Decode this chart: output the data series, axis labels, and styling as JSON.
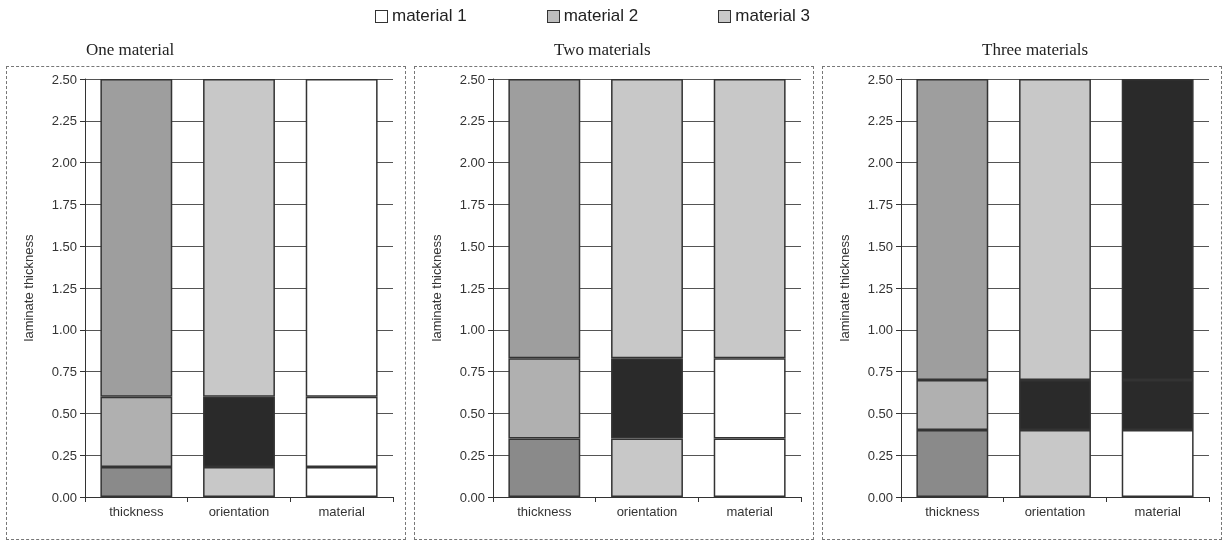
{
  "chart_data": [
    {
      "type": "bar",
      "title": "One material",
      "ylabel": "laminate thickness",
      "stacked": true,
      "categories": [
        "thickness",
        "orientation",
        "material"
      ],
      "ylim": [
        0,
        2.5
      ],
      "yticks": [
        {
          "value": 0,
          "label": "0.00"
        },
        {
          "value": 0.25,
          "label": "0.25"
        },
        {
          "value": 0.5,
          "label": "0.50"
        },
        {
          "value": 0.75,
          "label": "0.75"
        },
        {
          "value": 1,
          "label": "1.00"
        },
        {
          "value": 1.25,
          "label": "1.25"
        },
        {
          "value": 1.5,
          "label": "1.50"
        },
        {
          "value": 1.75,
          "label": "1.75"
        },
        {
          "value": 2,
          "label": "2.00"
        },
        {
          "value": 2.25,
          "label": "2.25"
        },
        {
          "value": 2.5,
          "label": "2.50"
        }
      ],
      "grid": "y",
      "annotations": [
        "material 1",
        "material 2",
        "material 3"
      ],
      "series": [
        {
          "values": [
            0.18,
            0.18,
            0.18
          ],
          "colors": [
            "#8a8a8a",
            "#c8c8c8",
            "#ffffff"
          ]
        },
        {
          "values": [
            0.42,
            0.42,
            0.42
          ],
          "colors": [
            "#b0b0b0",
            "#2a2a2a",
            "#ffffff"
          ]
        },
        {
          "values": [
            1.9,
            1.9,
            1.9
          ],
          "colors": [
            "#9e9e9e",
            "#c8c8c8",
            "#ffffff"
          ]
        }
      ]
    },
    {
      "type": "bar",
      "title": "Two materials",
      "ylabel": "laminate thickness",
      "stacked": true,
      "categories": [
        "thickness",
        "orientation",
        "material"
      ],
      "ylim": [
        0,
        2.5
      ],
      "yticks": [
        {
          "value": 0,
          "label": "0.00"
        },
        {
          "value": 0.25,
          "label": "0.25"
        },
        {
          "value": 0.5,
          "label": "0.50"
        },
        {
          "value": 0.75,
          "label": "0.75"
        },
        {
          "value": 1,
          "label": "1.00"
        },
        {
          "value": 1.25,
          "label": "1.25"
        },
        {
          "value": 1.5,
          "label": "1.50"
        },
        {
          "value": 1.75,
          "label": "1.75"
        },
        {
          "value": 2,
          "label": "2.00"
        },
        {
          "value": 2.25,
          "label": "2.25"
        },
        {
          "value": 2.5,
          "label": "2.50"
        }
      ],
      "grid": "y",
      "series": [
        {
          "values": [
            0.35,
            0.35,
            0.35
          ],
          "colors": [
            "#8a8a8a",
            "#c8c8c8",
            "#ffffff"
          ]
        },
        {
          "values": [
            0.48,
            0.48,
            0.48
          ],
          "colors": [
            "#b0b0b0",
            "#2a2a2a",
            "#ffffff"
          ]
        },
        {
          "values": [
            1.67,
            1.67,
            1.67
          ],
          "colors": [
            "#9e9e9e",
            "#c8c8c8",
            "#c8c8c8"
          ]
        }
      ]
    },
    {
      "type": "bar",
      "title": "Three materials",
      "ylabel": "laminate thickness",
      "stacked": true,
      "categories": [
        "thickness",
        "orientation",
        "material"
      ],
      "ylim": [
        0,
        2.5
      ],
      "yticks": [
        {
          "value": 0,
          "label": "0.00"
        },
        {
          "value": 0.25,
          "label": "0.25"
        },
        {
          "value": 0.5,
          "label": "0.50"
        },
        {
          "value": 0.75,
          "label": "0.75"
        },
        {
          "value": 1,
          "label": "1.00"
        },
        {
          "value": 1.25,
          "label": "1.25"
        },
        {
          "value": 1.5,
          "label": "1.50"
        },
        {
          "value": 1.75,
          "label": "1.75"
        },
        {
          "value": 2,
          "label": "2.00"
        },
        {
          "value": 2.25,
          "label": "2.25"
        },
        {
          "value": 2.5,
          "label": "2.50"
        }
      ],
      "grid": "y",
      "series": [
        {
          "values": [
            0.4,
            0.4,
            0.4
          ],
          "colors": [
            "#8a8a8a",
            "#c8c8c8",
            "#ffffff"
          ]
        },
        {
          "values": [
            0.3,
            0.3,
            0.3
          ],
          "colors": [
            "#b0b0b0",
            "#2a2a2a",
            "#2a2a2a"
          ]
        },
        {
          "values": [
            1.8,
            1.8,
            1.8
          ],
          "colors": [
            "#9e9e9e",
            "#c8c8c8",
            "#2a2a2a"
          ]
        }
      ]
    }
  ]
}
